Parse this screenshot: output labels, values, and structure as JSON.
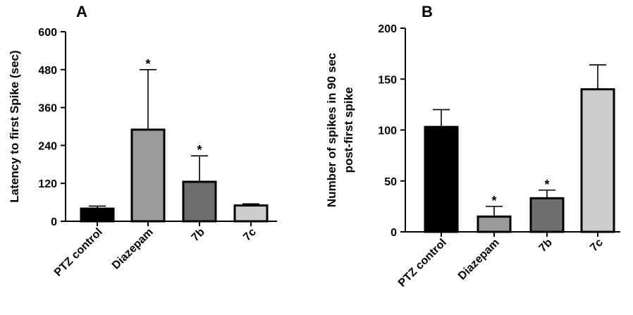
{
  "chart_data": [
    {
      "type": "bar",
      "panel": "A",
      "categories": [
        "PTZ control",
        "Diazepam",
        "7b",
        "7c"
      ],
      "values": [
        40,
        290,
        125,
        50
      ],
      "errors": [
        8,
        190,
        82,
        5
      ],
      "significance": [
        "",
        "*",
        "*",
        ""
      ],
      "colors": [
        "#000000",
        "#9b9b9b",
        "#6e6e6e",
        "#cdcdcd"
      ],
      "ylabel": "Latency to first Spike (sec)",
      "xlabel": "",
      "ylim": [
        0,
        600
      ],
      "yticks": [
        0,
        120,
        240,
        360,
        480,
        600
      ],
      "grid": false
    },
    {
      "type": "bar",
      "panel": "B",
      "categories": [
        "PTZ control",
        "Diazepam",
        "7b",
        "7c"
      ],
      "values": [
        103,
        15,
        33,
        140
      ],
      "errors": [
        17,
        10,
        8,
        24
      ],
      "significance": [
        "",
        "*",
        "*",
        ""
      ],
      "colors": [
        "#000000",
        "#9b9b9b",
        "#6e6e6e",
        "#cdcdcd"
      ],
      "ylabel_lines": [
        "Number of spikes in 90 sec",
        "post-first spike"
      ],
      "xlabel": "",
      "ylim": [
        0,
        200
      ],
      "yticks": [
        0,
        50,
        100,
        150,
        200
      ],
      "grid": false
    }
  ]
}
